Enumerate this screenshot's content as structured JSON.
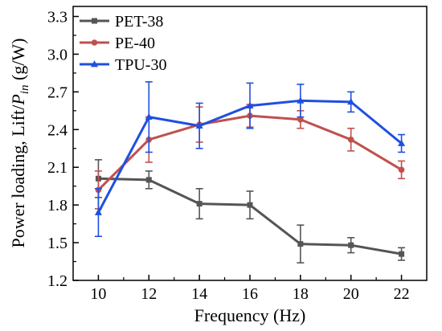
{
  "chart_data": {
    "type": "line",
    "title": "",
    "xlabel": "Frequency (Hz)",
    "ylabel_main": "Power loading, Lift/",
    "ylabel_italic": "P",
    "ylabel_sub": "in",
    "ylabel_unit": " (g/W)",
    "x": [
      10,
      12,
      14,
      16,
      18,
      20,
      22
    ],
    "x_ticks": [
      "10",
      "12",
      "14",
      "16",
      "18",
      "20",
      "22"
    ],
    "y_ticks": [
      "1.2",
      "1.5",
      "1.8",
      "2.1",
      "2.4",
      "2.7",
      "3.0",
      "3.3"
    ],
    "xlim": [
      9,
      23
    ],
    "ylim": [
      1.2,
      3.38
    ],
    "grid": false,
    "legend_position": "top-left",
    "series": [
      {
        "name": "PET-38",
        "color": "#555555",
        "marker": "square",
        "values": [
          2.01,
          2.0,
          1.81,
          1.8,
          1.49,
          1.48,
          1.41
        ],
        "errors": [
          0.15,
          0.07,
          0.12,
          0.11,
          0.15,
          0.06,
          0.05
        ]
      },
      {
        "name": "PE-40",
        "color": "#c0504d",
        "marker": "circle",
        "values": [
          1.92,
          2.32,
          2.44,
          2.51,
          2.48,
          2.32,
          2.08
        ],
        "errors": [
          0.15,
          0.18,
          0.14,
          0.09,
          0.07,
          0.09,
          0.07
        ]
      },
      {
        "name": "TPU-30",
        "color": "#1f4fe0",
        "marker": "triangle",
        "values": [
          1.74,
          2.5,
          2.43,
          2.59,
          2.63,
          2.62,
          2.29
        ],
        "errors": [
          0.19,
          0.28,
          0.18,
          0.18,
          0.13,
          0.08,
          0.07
        ]
      }
    ]
  }
}
